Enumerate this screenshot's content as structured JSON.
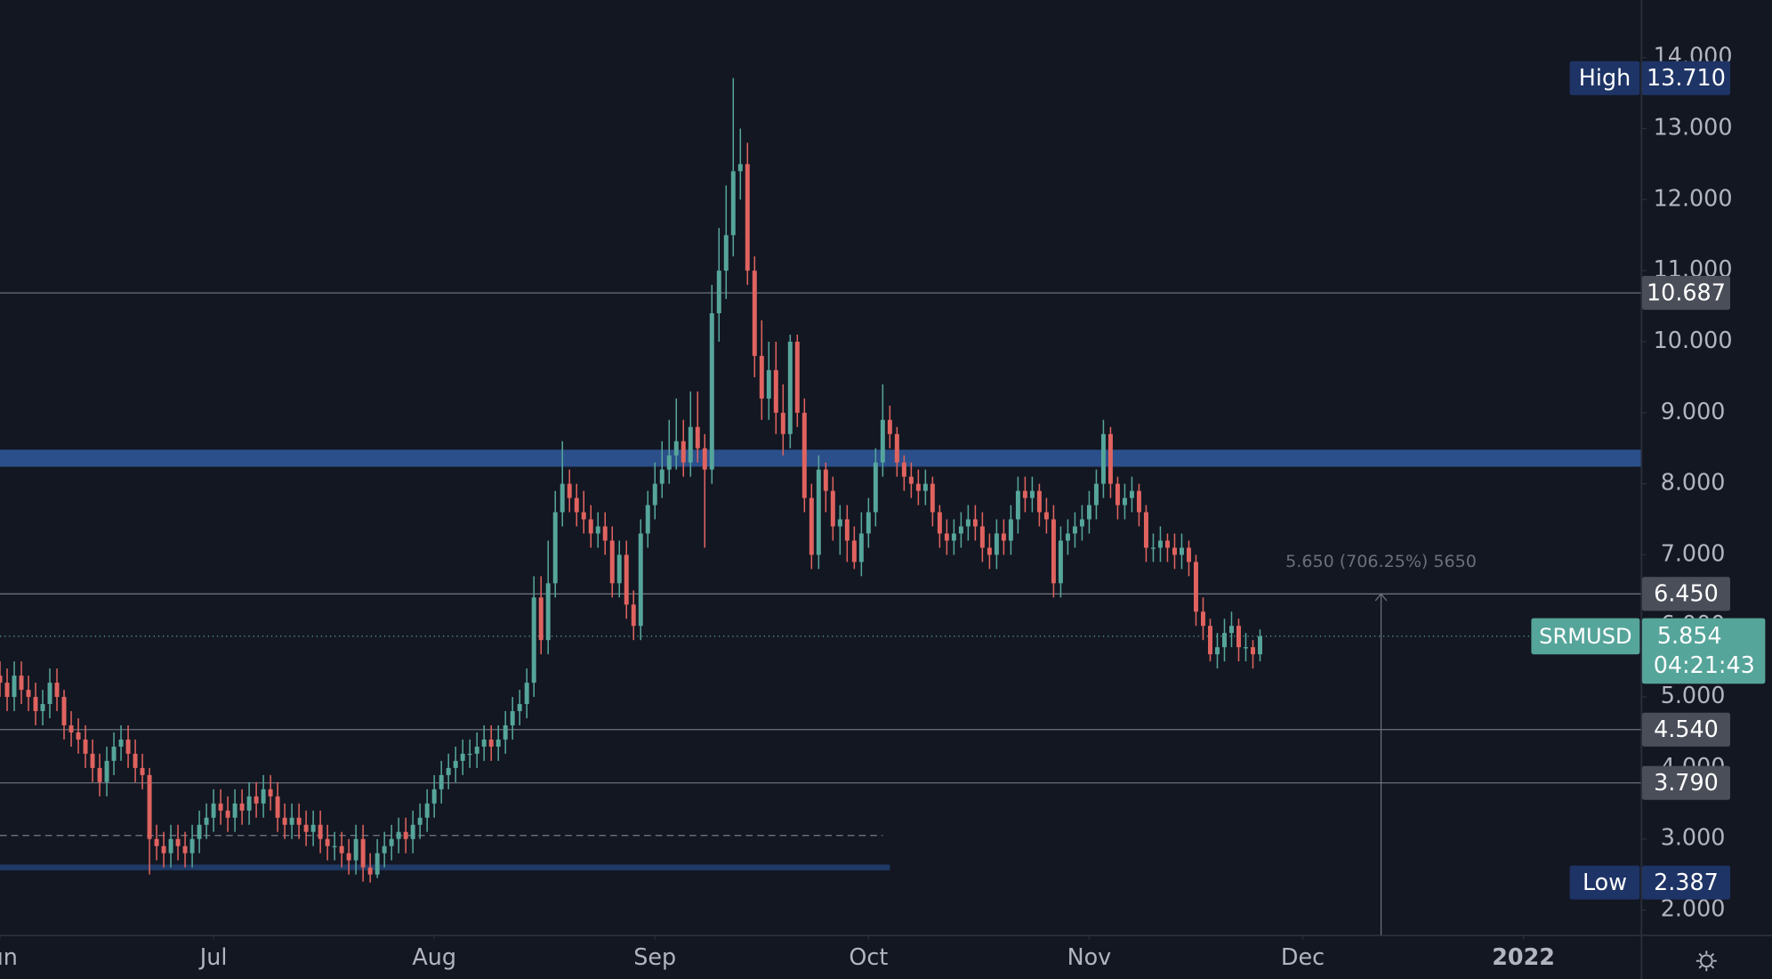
{
  "chart_data": {
    "type": "candlestick",
    "symbol": "SRMUSD",
    "countdown": "04:21:43",
    "up_color": "#56a59b",
    "down_color": "#e0635f",
    "xlim": [
      0,
      230.5
    ],
    "ylim": [
      1.65,
      14.81
    ],
    "xticks": [
      {
        "value": 0,
        "label": "Jun"
      },
      {
        "value": 30,
        "label": "Jul"
      },
      {
        "value": 61,
        "label": "Aug"
      },
      {
        "value": 92,
        "label": "Sep"
      },
      {
        "value": 122,
        "label": "Oct"
      },
      {
        "value": 153,
        "label": "Nov"
      },
      {
        "value": 183,
        "label": "Dec"
      },
      {
        "value": 214,
        "label": "2022"
      }
    ],
    "yticks": [
      {
        "value": 2,
        "label": "2.000"
      },
      {
        "value": 3,
        "label": "3.000"
      },
      {
        "value": 4,
        "label": "4.000"
      },
      {
        "value": 5,
        "label": "5.000"
      },
      {
        "value": 6,
        "label": "6.000"
      },
      {
        "value": 7,
        "label": "7.000"
      },
      {
        "value": 8,
        "label": "8.000"
      },
      {
        "value": 9,
        "label": "9.000"
      },
      {
        "value": 10,
        "label": "10.000"
      },
      {
        "value": 11,
        "label": "11.000"
      },
      {
        "value": 12,
        "label": "12.000"
      },
      {
        "value": 13,
        "label": "13.000"
      },
      {
        "value": 14,
        "label": "14.000"
      }
    ],
    "candles": {
      "open": [
        5.3,
        5.2,
        5.0,
        5.3,
        5.1,
        5.0,
        4.8,
        4.9,
        5.2,
        5.0,
        4.6,
        4.5,
        4.4,
        4.2,
        4.0,
        3.8,
        4.1,
        4.3,
        4.4,
        4.2,
        4.0,
        3.9,
        3.0,
        2.9,
        2.8,
        3.0,
        2.9,
        2.8,
        3.0,
        3.2,
        3.3,
        3.5,
        3.4,
        3.3,
        3.5,
        3.4,
        3.6,
        3.5,
        3.7,
        3.6,
        3.3,
        3.2,
        3.3,
        3.2,
        3.1,
        3.2,
        3.0,
        2.9,
        2.9,
        2.8,
        2.7,
        3.0,
        2.6,
        2.5,
        2.8,
        2.9,
        3.0,
        3.1,
        3.0,
        3.2,
        3.3,
        3.5,
        3.7,
        3.9,
        4.0,
        4.1,
        4.2,
        4.2,
        4.3,
        4.4,
        4.3,
        4.4,
        4.6,
        4.8,
        4.9,
        5.2,
        6.4,
        5.8,
        6.6,
        7.6,
        8.0,
        7.8,
        7.6,
        7.5,
        7.3,
        7.4,
        7.2,
        6.6,
        7.0,
        6.3,
        6.0,
        7.3,
        7.7,
        8.0,
        8.2,
        8.4,
        8.6,
        8.3,
        8.8,
        8.5,
        8.2,
        10.4,
        11.0,
        11.5,
        12.4,
        12.5,
        11.0,
        9.8,
        9.2,
        9.6,
        9.0,
        8.7,
        10.0,
        9.0,
        7.8,
        7.0,
        8.2,
        7.9,
        7.4,
        7.5,
        7.2,
        6.9,
        7.3,
        7.6,
        8.3,
        8.9,
        8.7,
        8.3,
        8.1,
        8.0,
        7.9,
        8.0,
        7.6,
        7.3,
        7.2,
        7.3,
        7.4,
        7.5,
        7.4,
        7.1,
        7.0,
        7.3,
        7.2,
        7.5,
        7.9,
        7.8,
        7.9,
        7.6,
        7.5,
        6.6,
        7.2,
        7.3,
        7.4,
        7.5,
        7.7,
        8.0,
        8.7,
        8.0,
        7.7,
        7.8,
        7.9,
        7.6,
        7.1,
        7.1,
        7.2,
        7.1,
        7.0,
        7.1,
        6.9,
        6.2,
        6.0,
        5.6,
        5.7,
        5.9,
        6.0,
        5.7,
        5.7,
        5.6
      ],
      "high": [
        5.5,
        5.4,
        5.5,
        5.5,
        5.3,
        5.2,
        5.1,
        5.4,
        5.4,
        5.1,
        4.8,
        4.7,
        4.6,
        4.4,
        4.2,
        4.3,
        4.5,
        4.6,
        4.6,
        4.4,
        4.2,
        4.0,
        3.2,
        3.1,
        3.2,
        3.2,
        3.1,
        3.2,
        3.4,
        3.5,
        3.7,
        3.7,
        3.6,
        3.7,
        3.7,
        3.8,
        3.8,
        3.9,
        3.9,
        3.8,
        3.5,
        3.5,
        3.5,
        3.4,
        3.4,
        3.4,
        3.2,
        3.1,
        3.1,
        3.0,
        3.2,
        3.2,
        2.8,
        3.0,
        3.1,
        3.2,
        3.3,
        3.3,
        3.4,
        3.5,
        3.7,
        3.9,
        4.1,
        4.2,
        4.3,
        4.4,
        4.4,
        4.5,
        4.6,
        4.6,
        4.6,
        4.8,
        5.0,
        5.1,
        5.4,
        6.7,
        6.7,
        7.2,
        7.9,
        8.6,
        8.2,
        8.0,
        7.9,
        7.7,
        7.6,
        7.6,
        7.4,
        7.2,
        7.2,
        6.5,
        7.5,
        7.9,
        8.3,
        8.6,
        8.9,
        9.2,
        8.9,
        9.3,
        9.3,
        8.7,
        10.8,
        11.6,
        12.2,
        13.71,
        13.0,
        12.8,
        11.2,
        10.3,
        10.0,
        10.0,
        9.4,
        10.1,
        10.1,
        9.2,
        8.0,
        8.4,
        8.3,
        8.1,
        7.7,
        7.7,
        7.4,
        7.6,
        7.8,
        8.5,
        9.4,
        9.1,
        8.8,
        8.4,
        8.3,
        8.2,
        8.2,
        8.1,
        7.7,
        7.5,
        7.5,
        7.6,
        7.7,
        7.7,
        7.6,
        7.3,
        7.5,
        7.5,
        7.7,
        8.1,
        8.1,
        8.1,
        8.0,
        7.8,
        7.7,
        7.4,
        7.5,
        7.6,
        7.7,
        7.9,
        8.2,
        8.9,
        8.8,
        8.1,
        8.0,
        8.1,
        8.0,
        7.7,
        7.3,
        7.4,
        7.3,
        7.3,
        7.3,
        7.2,
        7.0,
        6.4,
        6.1,
        5.9,
        6.1,
        6.2,
        6.1,
        5.9,
        5.8,
        5.95
      ],
      "low": [
        5.0,
        4.8,
        4.8,
        4.9,
        4.8,
        4.6,
        4.6,
        4.7,
        4.8,
        4.4,
        4.3,
        4.2,
        4.0,
        3.8,
        3.6,
        3.6,
        3.9,
        4.1,
        4.0,
        3.8,
        3.7,
        2.5,
        2.7,
        2.6,
        2.6,
        2.7,
        2.6,
        2.6,
        2.8,
        3.0,
        3.1,
        3.2,
        3.1,
        3.1,
        3.2,
        3.2,
        3.3,
        3.3,
        3.4,
        3.1,
        3.0,
        3.0,
        3.0,
        2.9,
        2.9,
        2.8,
        2.7,
        2.7,
        2.6,
        2.5,
        2.5,
        2.4,
        2.387,
        2.45,
        2.6,
        2.7,
        2.8,
        2.8,
        2.8,
        3.0,
        3.1,
        3.3,
        3.5,
        3.7,
        3.8,
        3.9,
        4.0,
        4.0,
        4.1,
        4.1,
        4.1,
        4.2,
        4.4,
        4.6,
        4.7,
        5.0,
        5.6,
        5.6,
        6.4,
        7.4,
        7.6,
        7.4,
        7.3,
        7.1,
        7.1,
        7.0,
        6.4,
        6.4,
        6.1,
        5.8,
        5.8,
        7.1,
        7.5,
        7.8,
        8.0,
        8.2,
        8.1,
        8.1,
        8.3,
        7.1,
        8.0,
        10.0,
        10.6,
        11.2,
        12.0,
        10.8,
        9.5,
        8.9,
        8.9,
        8.7,
        8.4,
        8.5,
        8.8,
        7.6,
        6.8,
        6.8,
        7.6,
        7.2,
        7.0,
        6.9,
        6.8,
        6.7,
        7.1,
        7.4,
        8.1,
        8.5,
        8.1,
        7.9,
        7.8,
        7.7,
        7.7,
        7.4,
        7.1,
        7.0,
        7.0,
        7.1,
        7.2,
        7.2,
        6.9,
        6.8,
        6.8,
        7.0,
        7.0,
        7.3,
        7.6,
        7.6,
        7.4,
        7.3,
        6.4,
        6.4,
        7.0,
        7.1,
        7.2,
        7.3,
        7.5,
        7.8,
        7.8,
        7.5,
        7.5,
        7.6,
        7.4,
        6.9,
        6.9,
        6.9,
        6.9,
        6.8,
        6.8,
        6.7,
        6.0,
        5.8,
        5.5,
        5.4,
        5.5,
        5.7,
        5.5,
        5.5,
        5.4,
        5.5
      ],
      "close": [
        5.2,
        5.0,
        5.3,
        5.1,
        5.0,
        4.8,
        4.9,
        5.2,
        5.0,
        4.6,
        4.5,
        4.4,
        4.2,
        4.0,
        3.8,
        4.1,
        4.3,
        4.4,
        4.2,
        4.0,
        3.9,
        3.0,
        2.9,
        2.8,
        3.0,
        2.9,
        2.8,
        3.0,
        3.2,
        3.3,
        3.5,
        3.4,
        3.3,
        3.5,
        3.4,
        3.6,
        3.5,
        3.7,
        3.6,
        3.3,
        3.2,
        3.3,
        3.2,
        3.1,
        3.2,
        3.0,
        2.9,
        2.9,
        2.8,
        2.7,
        3.0,
        2.6,
        2.5,
        2.8,
        2.9,
        3.0,
        3.1,
        3.0,
        3.2,
        3.3,
        3.5,
        3.7,
        3.9,
        4.0,
        4.1,
        4.2,
        4.2,
        4.3,
        4.4,
        4.3,
        4.4,
        4.6,
        4.8,
        4.9,
        5.2,
        6.4,
        5.8,
        6.6,
        7.6,
        8.0,
        7.8,
        7.6,
        7.5,
        7.3,
        7.4,
        7.2,
        6.6,
        7.0,
        6.3,
        6.0,
        7.3,
        7.7,
        8.0,
        8.2,
        8.4,
        8.6,
        8.3,
        8.8,
        8.5,
        8.2,
        10.4,
        11.0,
        11.5,
        12.4,
        12.5,
        11.0,
        9.8,
        9.2,
        9.6,
        9.0,
        8.7,
        10.0,
        9.0,
        7.8,
        7.0,
        8.2,
        7.9,
        7.4,
        7.5,
        7.2,
        6.9,
        7.3,
        7.6,
        8.3,
        8.9,
        8.7,
        8.3,
        8.1,
        8.0,
        7.9,
        8.0,
        7.6,
        7.3,
        7.2,
        7.3,
        7.4,
        7.5,
        7.4,
        7.1,
        7.0,
        7.3,
        7.2,
        7.5,
        7.9,
        7.8,
        7.9,
        7.6,
        7.5,
        6.6,
        7.2,
        7.3,
        7.4,
        7.5,
        7.7,
        8.0,
        8.7,
        8.0,
        7.7,
        7.8,
        7.9,
        7.6,
        7.1,
        7.1,
        7.2,
        7.1,
        7.0,
        7.1,
        6.9,
        6.2,
        6.0,
        5.6,
        5.7,
        5.9,
        6.0,
        5.7,
        5.7,
        5.6,
        5.854
      ]
    },
    "last_price": {
      "value": 5.854,
      "label": "5.854"
    },
    "high_marker": {
      "name": "High",
      "value": 13.71,
      "label": "13.710"
    },
    "low_marker": {
      "name": "Low",
      "value": 2.387,
      "label": "2.387"
    },
    "levels": [
      {
        "value": 10.687,
        "label": "10.687"
      },
      {
        "value": 6.45,
        "label": "6.450"
      },
      {
        "value": 4.54,
        "label": "4.540"
      },
      {
        "value": 3.79,
        "label": "3.790"
      }
    ],
    "zones": [
      {
        "from": 8.24,
        "to": 8.48,
        "end": 230.5,
        "color": "#2b4f8a"
      },
      {
        "from": 2.56,
        "to": 2.64,
        "end": 125,
        "color": "#1f3a66"
      }
    ],
    "dashed_level": {
      "value": 3.05,
      "end": 124
    },
    "measure": {
      "label": "5.650 (706.25%) 5650",
      "x": 194,
      "to": 6.45
    }
  }
}
